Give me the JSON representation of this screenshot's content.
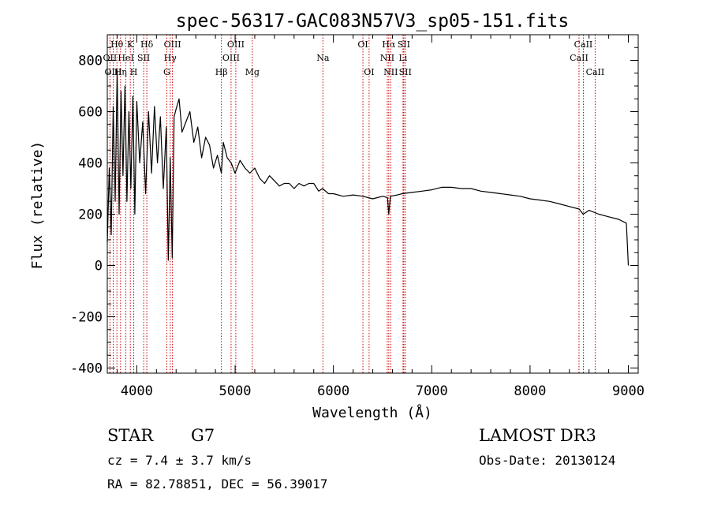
{
  "chart_data": {
    "type": "line",
    "title": "spec-56317-GAC083N57V3_sp05-151.fits",
    "xlabel": "Wavelength (Å)",
    "ylabel": "Flux (relative)",
    "xlim": [
      3700,
      9100
    ],
    "ylim": [
      -420,
      900
    ],
    "x_ticks": [
      4000,
      5000,
      6000,
      7000,
      8000,
      9000
    ],
    "x_tick_labels": [
      "4000",
      "5000",
      "6000",
      "7000",
      "8000",
      "9000"
    ],
    "y_ticks": [
      -400,
      -200,
      0,
      200,
      400,
      600,
      800
    ],
    "y_tick_labels": [
      "-400",
      "-200",
      "0",
      "200",
      "400",
      "600",
      "800"
    ],
    "series": [
      {
        "name": "flux",
        "color": "#000000",
        "x": [
          3700,
          3720,
          3740,
          3760,
          3780,
          3800,
          3820,
          3840,
          3860,
          3880,
          3900,
          3920,
          3940,
          3960,
          3980,
          4000,
          4030,
          4060,
          4090,
          4120,
          4150,
          4180,
          4210,
          4240,
          4270,
          4300,
          4320,
          4340,
          4360,
          4380,
          4400,
          4430,
          4460,
          4500,
          4540,
          4580,
          4620,
          4660,
          4700,
          4740,
          4780,
          4820,
          4860,
          4880,
          4920,
          4960,
          5000,
          5050,
          5100,
          5150,
          5200,
          5250,
          5300,
          5350,
          5400,
          5450,
          5500,
          5550,
          5600,
          5650,
          5700,
          5750,
          5800,
          5850,
          5890,
          5950,
          6000,
          6100,
          6200,
          6300,
          6400,
          6500,
          6550,
          6563,
          6580,
          6650,
          6700,
          6800,
          6900,
          7000,
          7100,
          7200,
          7300,
          7400,
          7500,
          7600,
          7700,
          7800,
          7900,
          8000,
          8100,
          8200,
          8300,
          8400,
          8500,
          8540,
          8600,
          8700,
          8800,
          8900,
          8980,
          9000
        ],
        "values": [
          90,
          380,
          120,
          620,
          250,
          760,
          200,
          680,
          350,
          700,
          250,
          600,
          300,
          660,
          200,
          640,
          400,
          560,
          280,
          600,
          360,
          620,
          400,
          580,
          300,
          540,
          20,
          420,
          30,
          580,
          610,
          650,
          520,
          560,
          600,
          480,
          540,
          420,
          500,
          470,
          380,
          430,
          360,
          480,
          420,
          400,
          360,
          410,
          380,
          360,
          380,
          340,
          320,
          350,
          330,
          310,
          320,
          320,
          300,
          320,
          310,
          320,
          320,
          290,
          300,
          280,
          280,
          270,
          275,
          270,
          260,
          270,
          265,
          200,
          270,
          275,
          280,
          285,
          290,
          295,
          305,
          305,
          300,
          300,
          290,
          285,
          280,
          275,
          270,
          260,
          255,
          250,
          240,
          230,
          220,
          200,
          215,
          200,
          190,
          180,
          165,
          0
        ]
      }
    ],
    "line_markers": [
      {
        "label": "Hθ",
        "wavelength": 3798,
        "row": 1
      },
      {
        "label": "OII",
        "wavelength": 3727,
        "row": 2
      },
      {
        "label": "OIII",
        "wavelength": 3760,
        "row": 3
      },
      {
        "label": "K",
        "wavelength": 3934,
        "row": 1
      },
      {
        "label": "HeI",
        "wavelength": 3889,
        "row": 2
      },
      {
        "label": "Hη",
        "wavelength": 3835,
        "row": 3
      },
      {
        "label": "H",
        "wavelength": 3969,
        "row": 3
      },
      {
        "label": "Hδ",
        "wavelength": 4102,
        "row": 1
      },
      {
        "label": "SII",
        "wavelength": 4070,
        "row": 2
      },
      {
        "label": "OIII",
        "wavelength": 4363,
        "row": 1
      },
      {
        "label": "Hγ",
        "wavelength": 4340,
        "row": 2
      },
      {
        "label": "G",
        "wavelength": 4305,
        "row": 3
      },
      {
        "label": "OIII",
        "wavelength": 5007,
        "row": 1
      },
      {
        "label": "OIII",
        "wavelength": 4959,
        "row": 2
      },
      {
        "label": "Hβ",
        "wavelength": 4861,
        "row": 3
      },
      {
        "label": "Mg",
        "wavelength": 5175,
        "row": 3
      },
      {
        "label": "Na",
        "wavelength": 5893,
        "row": 2
      },
      {
        "label": "OI",
        "wavelength": 6300,
        "row": 1
      },
      {
        "label": "OI",
        "wavelength": 6363,
        "row": 3
      },
      {
        "label": "Hα",
        "wavelength": 6563,
        "row": 1
      },
      {
        "label": "NII",
        "wavelength": 6548,
        "row": 2
      },
      {
        "label": "NII",
        "wavelength": 6583,
        "row": 3
      },
      {
        "label": "SII",
        "wavelength": 6716,
        "row": 1
      },
      {
        "label": "Li",
        "wavelength": 6708,
        "row": 2
      },
      {
        "label": "SII",
        "wavelength": 6731,
        "row": 3
      },
      {
        "label": "CaII",
        "wavelength": 8542,
        "row": 1
      },
      {
        "label": "CaII",
        "wavelength": 8498,
        "row": 2
      },
      {
        "label": "CaII",
        "wavelength": 8662,
        "row": 3
      }
    ],
    "marker_color": "#cc0000"
  },
  "info": {
    "object_type": "STAR",
    "subclass": "G7",
    "survey": "LAMOST DR3",
    "cz": "cz = 7.4 ± 3.7 km/s",
    "obs_date": "Obs-Date: 20130124",
    "coords": "RA =  82.78851, DEC =  56.39017"
  }
}
